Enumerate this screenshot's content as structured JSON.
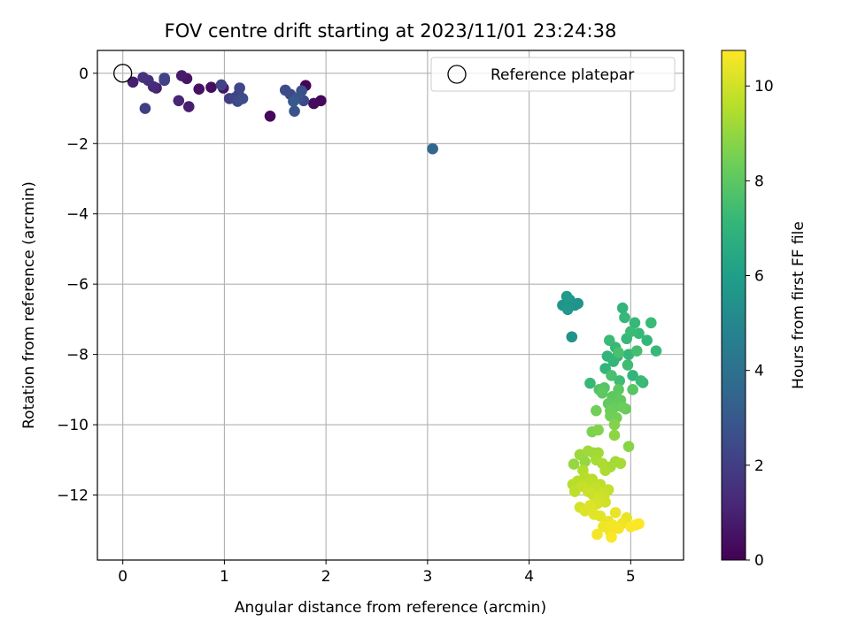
{
  "chart_data": {
    "type": "scatter",
    "title": "FOV centre drift starting at 2023/11/01 23:24:38",
    "xlabel": "Angular distance from reference (arcmin)",
    "ylabel": "Rotation from reference (arcmin)",
    "xlim": [
      -0.25,
      5.52
    ],
    "ylim": [
      -13.85,
      0.65
    ],
    "xticks": [
      0,
      1,
      2,
      3,
      4,
      5
    ],
    "yticks": [
      0,
      -2,
      -4,
      -6,
      -8,
      -10,
      -12
    ],
    "grid": true,
    "legend": {
      "position": "top-right",
      "label": "Reference platepar"
    },
    "reference_point": {
      "x": 0,
      "y": 0
    },
    "colorbar": {
      "label": "Hours from first FF file",
      "range": [
        0,
        10.75
      ],
      "ticks": [
        0,
        2,
        4,
        6,
        8,
        10
      ],
      "colormap": "viridis",
      "colors": [
        "#440154",
        "#482878",
        "#3e4989",
        "#31688e",
        "#26828e",
        "#1f9e89",
        "#35b779",
        "#6ece58",
        "#b5de2b",
        "#fde725"
      ]
    },
    "series": [
      {
        "points": [
          {
            "x": 0.1,
            "y": -0.25,
            "t": 0.9
          },
          {
            "x": 0.2,
            "y": -0.12,
            "t": 1.6
          },
          {
            "x": 0.25,
            "y": -0.2,
            "t": 1.5
          },
          {
            "x": 0.22,
            "y": -1.0,
            "t": 2.0
          },
          {
            "x": 0.3,
            "y": -0.38,
            "t": 1.3
          },
          {
            "x": 0.33,
            "y": -0.42,
            "t": 1.0
          },
          {
            "x": 0.41,
            "y": -0.2,
            "t": 2.0
          },
          {
            "x": 0.41,
            "y": -0.14,
            "t": 2.2
          },
          {
            "x": 0.55,
            "y": -0.78,
            "t": 1.1
          },
          {
            "x": 0.58,
            "y": -0.07,
            "t": 0.8
          },
          {
            "x": 0.63,
            "y": -0.15,
            "t": 0.6
          },
          {
            "x": 0.65,
            "y": -0.95,
            "t": 0.9
          },
          {
            "x": 0.75,
            "y": -0.45,
            "t": 0.5
          },
          {
            "x": 0.87,
            "y": -0.4,
            "t": 0.4
          },
          {
            "x": 0.97,
            "y": -0.33,
            "t": 2.2
          },
          {
            "x": 0.99,
            "y": -0.42,
            "t": 0.6
          },
          {
            "x": 1.05,
            "y": -0.72,
            "t": 2.0
          },
          {
            "x": 1.1,
            "y": -0.7,
            "t": 2.2
          },
          {
            "x": 1.13,
            "y": -0.8,
            "t": 2.4
          },
          {
            "x": 1.14,
            "y": -0.6,
            "t": 2.2
          },
          {
            "x": 1.15,
            "y": -0.42,
            "t": 2.3
          },
          {
            "x": 1.18,
            "y": -0.72,
            "t": 2.6
          },
          {
            "x": 1.45,
            "y": -1.22,
            "t": 0.2
          },
          {
            "x": 1.6,
            "y": -0.48,
            "t": 2.5
          },
          {
            "x": 1.65,
            "y": -0.6,
            "t": 2.4
          },
          {
            "x": 1.68,
            "y": -0.8,
            "t": 3.0
          },
          {
            "x": 1.69,
            "y": -1.08,
            "t": 2.8
          },
          {
            "x": 1.72,
            "y": -0.7,
            "t": 2.8
          },
          {
            "x": 1.76,
            "y": -0.5,
            "t": 2.7
          },
          {
            "x": 1.78,
            "y": -0.78,
            "t": 2.4
          },
          {
            "x": 1.8,
            "y": -0.35,
            "t": 0.1
          },
          {
            "x": 1.88,
            "y": -0.86,
            "t": 0.3
          },
          {
            "x": 1.95,
            "y": -0.78,
            "t": 0.2
          },
          {
            "x": 3.05,
            "y": -2.15,
            "t": 3.6
          },
          {
            "x": 4.33,
            "y": -6.6,
            "t": 5.6
          },
          {
            "x": 4.37,
            "y": -6.35,
            "t": 5.8
          },
          {
            "x": 4.38,
            "y": -6.72,
            "t": 5.7
          },
          {
            "x": 4.4,
            "y": -6.45,
            "t": 5.6
          },
          {
            "x": 4.42,
            "y": -7.5,
            "t": 5.5
          },
          {
            "x": 4.45,
            "y": -6.6,
            "t": 5.5
          },
          {
            "x": 4.48,
            "y": -6.55,
            "t": 5.4
          },
          {
            "x": 4.6,
            "y": -8.82,
            "t": 7.2
          },
          {
            "x": 4.75,
            "y": -8.4,
            "t": 7.0
          },
          {
            "x": 4.77,
            "y": -8.05,
            "t": 7.0
          },
          {
            "x": 4.79,
            "y": -7.6,
            "t": 7.3
          },
          {
            "x": 4.81,
            "y": -8.6,
            "t": 7.6
          },
          {
            "x": 4.83,
            "y": -8.2,
            "t": 7.1
          },
          {
            "x": 4.85,
            "y": -7.8,
            "t": 7.2
          },
          {
            "x": 4.87,
            "y": -8.05,
            "t": 7.0
          },
          {
            "x": 4.89,
            "y": -8.75,
            "t": 7.4
          },
          {
            "x": 4.92,
            "y": -6.68,
            "t": 7.0
          },
          {
            "x": 4.94,
            "y": -6.95,
            "t": 7.2
          },
          {
            "x": 4.96,
            "y": -7.55,
            "t": 7.2
          },
          {
            "x": 4.98,
            "y": -8.0,
            "t": 7.1
          },
          {
            "x": 5.0,
            "y": -7.35,
            "t": 7.3
          },
          {
            "x": 5.02,
            "y": -8.6,
            "t": 7.0
          },
          {
            "x": 5.04,
            "y": -7.1,
            "t": 7.2
          },
          {
            "x": 5.06,
            "y": -7.9,
            "t": 7.5
          },
          {
            "x": 5.08,
            "y": -7.4,
            "t": 7.2
          },
          {
            "x": 5.1,
            "y": -8.75,
            "t": 7.3
          },
          {
            "x": 5.12,
            "y": -8.8,
            "t": 7.2
          },
          {
            "x": 5.16,
            "y": -7.6,
            "t": 7.1
          },
          {
            "x": 5.2,
            "y": -7.1,
            "t": 7.3
          },
          {
            "x": 5.25,
            "y": -7.9,
            "t": 7.2
          },
          {
            "x": 4.88,
            "y": -7.95,
            "t": 7.6
          },
          {
            "x": 4.97,
            "y": -8.3,
            "t": 7.4
          },
          {
            "x": 4.69,
            "y": -9.0,
            "t": 7.8
          },
          {
            "x": 4.72,
            "y": -9.1,
            "t": 8.0
          },
          {
            "x": 4.74,
            "y": -8.95,
            "t": 7.9
          },
          {
            "x": 4.78,
            "y": -9.4,
            "t": 8.1
          },
          {
            "x": 4.8,
            "y": -9.6,
            "t": 8.3
          },
          {
            "x": 4.82,
            "y": -9.2,
            "t": 8.0
          },
          {
            "x": 4.84,
            "y": -9.5,
            "t": 8.2
          },
          {
            "x": 4.86,
            "y": -9.8,
            "t": 8.4
          },
          {
            "x": 4.88,
            "y": -9.0,
            "t": 8.0
          },
          {
            "x": 4.9,
            "y": -9.3,
            "t": 8.1
          },
          {
            "x": 4.92,
            "y": -9.5,
            "t": 8.3
          },
          {
            "x": 4.95,
            "y": -9.55,
            "t": 8.2
          },
          {
            "x": 5.02,
            "y": -9.0,
            "t": 7.9
          },
          {
            "x": 4.66,
            "y": -9.6,
            "t": 8.4
          },
          {
            "x": 4.68,
            "y": -10.15,
            "t": 8.7
          },
          {
            "x": 4.62,
            "y": -10.2,
            "t": 8.6
          },
          {
            "x": 4.8,
            "y": -9.75,
            "t": 8.4
          },
          {
            "x": 4.84,
            "y": -10.0,
            "t": 8.7
          },
          {
            "x": 4.84,
            "y": -10.3,
            "t": 8.9
          },
          {
            "x": 4.98,
            "y": -10.62,
            "t": 8.8
          },
          {
            "x": 4.44,
            "y": -11.12,
            "t": 9.0
          },
          {
            "x": 4.5,
            "y": -10.85,
            "t": 9.1
          },
          {
            "x": 4.55,
            "y": -11.05,
            "t": 9.0
          },
          {
            "x": 4.58,
            "y": -10.75,
            "t": 9.2
          },
          {
            "x": 4.63,
            "y": -10.8,
            "t": 9.1
          },
          {
            "x": 4.66,
            "y": -11.0,
            "t": 9.3
          },
          {
            "x": 4.68,
            "y": -10.8,
            "t": 9.2
          },
          {
            "x": 4.72,
            "y": -11.1,
            "t": 9.4
          },
          {
            "x": 4.75,
            "y": -11.3,
            "t": 9.4
          },
          {
            "x": 4.8,
            "y": -11.2,
            "t": 9.3
          },
          {
            "x": 4.85,
            "y": -11.05,
            "t": 9.2
          },
          {
            "x": 4.9,
            "y": -11.1,
            "t": 9.3
          },
          {
            "x": 4.43,
            "y": -11.7,
            "t": 9.6
          },
          {
            "x": 4.45,
            "y": -11.9,
            "t": 9.7
          },
          {
            "x": 4.48,
            "y": -11.6,
            "t": 9.6
          },
          {
            "x": 4.52,
            "y": -11.75,
            "t": 9.8
          },
          {
            "x": 4.55,
            "y": -11.5,
            "t": 9.6
          },
          {
            "x": 4.58,
            "y": -11.9,
            "t": 9.9
          },
          {
            "x": 4.6,
            "y": -11.65,
            "t": 9.7
          },
          {
            "x": 4.63,
            "y": -12.0,
            "t": 9.9
          },
          {
            "x": 4.65,
            "y": -11.8,
            "t": 9.8
          },
          {
            "x": 4.68,
            "y": -12.1,
            "t": 10.0
          },
          {
            "x": 4.7,
            "y": -11.7,
            "t": 9.7
          },
          {
            "x": 4.72,
            "y": -11.95,
            "t": 9.9
          },
          {
            "x": 4.75,
            "y": -12.2,
            "t": 10.0
          },
          {
            "x": 4.78,
            "y": -11.85,
            "t": 9.8
          },
          {
            "x": 4.5,
            "y": -12.35,
            "t": 10.1
          },
          {
            "x": 4.55,
            "y": -12.45,
            "t": 10.2
          },
          {
            "x": 4.6,
            "y": -12.3,
            "t": 10.2
          },
          {
            "x": 4.64,
            "y": -12.55,
            "t": 10.3
          },
          {
            "x": 4.67,
            "y": -12.25,
            "t": 10.1
          },
          {
            "x": 4.7,
            "y": -12.6,
            "t": 10.3
          },
          {
            "x": 4.73,
            "y": -12.9,
            "t": 10.5
          },
          {
            "x": 4.78,
            "y": -12.75,
            "t": 10.4
          },
          {
            "x": 4.8,
            "y": -13.05,
            "t": 10.5
          },
          {
            "x": 4.82,
            "y": -12.85,
            "t": 10.6
          },
          {
            "x": 4.85,
            "y": -12.5,
            "t": 10.4
          },
          {
            "x": 4.88,
            "y": -12.95,
            "t": 10.6
          },
          {
            "x": 4.92,
            "y": -12.8,
            "t": 10.5
          },
          {
            "x": 4.96,
            "y": -12.65,
            "t": 10.4
          },
          {
            "x": 5.0,
            "y": -12.9,
            "t": 10.7
          },
          {
            "x": 5.05,
            "y": -12.85,
            "t": 10.7
          },
          {
            "x": 5.08,
            "y": -12.82,
            "t": 10.8
          },
          {
            "x": 4.67,
            "y": -13.12,
            "t": 10.6
          },
          {
            "x": 4.81,
            "y": -13.2,
            "t": 10.7
          },
          {
            "x": 4.74,
            "y": -12.0,
            "t": 9.9
          },
          {
            "x": 4.62,
            "y": -11.55,
            "t": 9.6
          },
          {
            "x": 4.53,
            "y": -11.3,
            "t": 9.5
          }
        ]
      }
    ]
  }
}
